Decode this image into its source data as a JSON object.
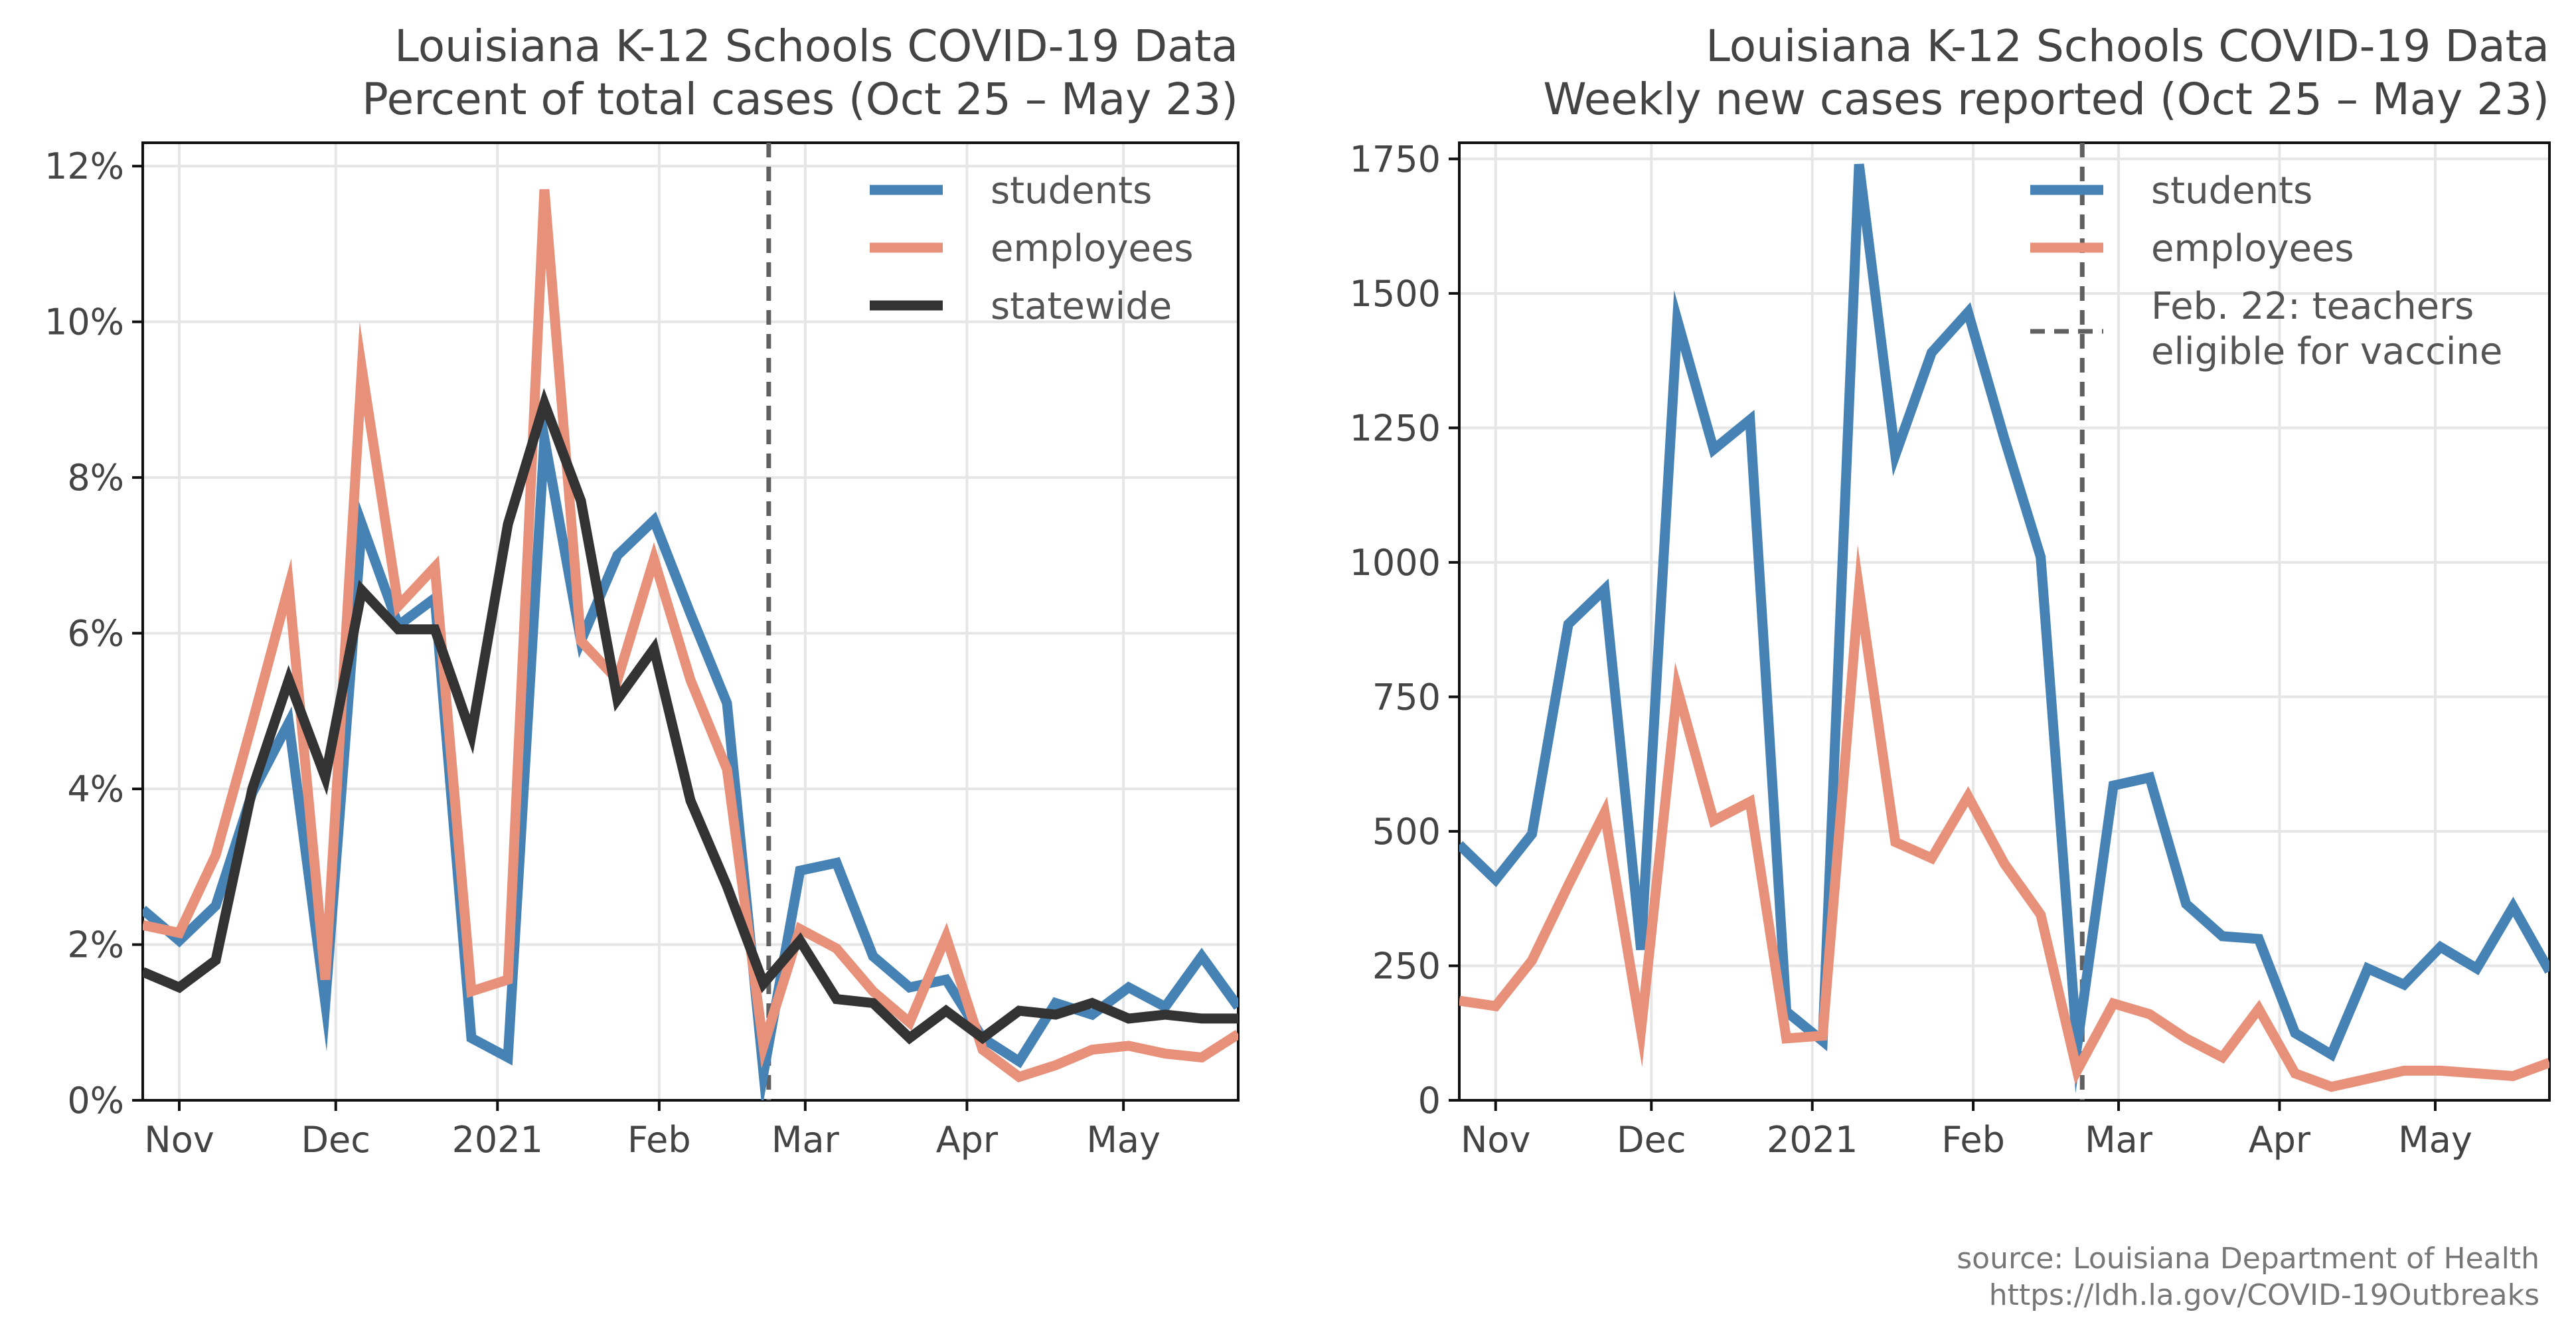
{
  "chart_data": [
    {
      "type": "line",
      "title": "Louisiana K-12 Schools COVID-19 Data",
      "subtitle": "Percent of total cases (Oct 25 – May 23)",
      "y_format": "percent",
      "ylim": [
        0,
        12.3
      ],
      "yticks": [
        0,
        2,
        4,
        6,
        8,
        10,
        12
      ],
      "ytick_labels": [
        "0%",
        "2%",
        "4%",
        "6%",
        "8%",
        "10%",
        "12%"
      ],
      "xlim": [
        "2020-10-25",
        "2021-05-23"
      ],
      "xticks": [
        "2020-11-01",
        "2020-12-01",
        "2021-01-01",
        "2021-02-01",
        "2021-03-01",
        "2021-04-01",
        "2021-05-01"
      ],
      "xtick_labels": [
        "Nov",
        "Dec",
        "2021",
        "Feb",
        "Mar",
        "Apr",
        "May"
      ],
      "grid": true,
      "legend_position": "top-right",
      "vline": {
        "x": "2021-02-22",
        "color": "#606060"
      },
      "series": [
        {
          "name": "students",
          "color": "#4682b4",
          "x": [
            "2020-10-25",
            "2020-11-01",
            "2020-11-08",
            "2020-11-15",
            "2020-11-22",
            "2020-11-29",
            "2020-12-06",
            "2020-12-13",
            "2020-12-20",
            "2020-12-27",
            "2021-01-03",
            "2021-01-10",
            "2021-01-17",
            "2021-01-24",
            "2021-01-31",
            "2021-02-07",
            "2021-02-14",
            "2021-02-21",
            "2021-02-28",
            "2021-03-07",
            "2021-03-14",
            "2021-03-21",
            "2021-03-28",
            "2021-04-04",
            "2021-04-11",
            "2021-04-18",
            "2021-04-25",
            "2021-05-02",
            "2021-05-09",
            "2021-05-16",
            "2021-05-23"
          ],
          "y": [
            2.45,
            2.05,
            2.5,
            3.95,
            4.85,
            1.25,
            7.4,
            6.1,
            6.45,
            0.8,
            0.55,
            8.5,
            5.9,
            7.0,
            7.45,
            6.25,
            5.1,
            0.35,
            2.95,
            3.05,
            1.85,
            1.45,
            1.55,
            0.8,
            0.5,
            1.25,
            1.1,
            1.45,
            1.2,
            1.85,
            1.2
          ]
        },
        {
          "name": "employees",
          "color": "#e8917a",
          "x": [
            "2020-10-25",
            "2020-11-01",
            "2020-11-08",
            "2020-11-15",
            "2020-11-22",
            "2020-11-29",
            "2020-12-06",
            "2020-12-13",
            "2020-12-20",
            "2020-12-27",
            "2021-01-03",
            "2021-01-10",
            "2021-01-17",
            "2021-01-24",
            "2021-01-31",
            "2021-02-07",
            "2021-02-14",
            "2021-02-21",
            "2021-02-28",
            "2021-03-07",
            "2021-03-14",
            "2021-03-21",
            "2021-03-28",
            "2021-04-04",
            "2021-04-11",
            "2021-04-18",
            "2021-04-25",
            "2021-05-02",
            "2021-05-09",
            "2021-05-16",
            "2021-05-23"
          ],
          "y": [
            2.25,
            2.15,
            3.15,
            4.85,
            6.6,
            1.55,
            9.4,
            6.35,
            6.85,
            1.4,
            1.55,
            11.7,
            5.9,
            5.4,
            6.95,
            5.4,
            4.25,
            0.7,
            2.2,
            1.95,
            1.4,
            1.0,
            2.1,
            0.65,
            0.3,
            0.45,
            0.65,
            0.7,
            0.6,
            0.55,
            0.85
          ]
        },
        {
          "name": "statewide",
          "color": "#333333",
          "x": [
            "2020-10-25",
            "2020-11-01",
            "2020-11-08",
            "2020-11-15",
            "2020-11-22",
            "2020-11-29",
            "2020-12-06",
            "2020-12-13",
            "2020-12-20",
            "2020-12-27",
            "2021-01-03",
            "2021-01-10",
            "2021-01-17",
            "2021-01-24",
            "2021-01-31",
            "2021-02-07",
            "2021-02-14",
            "2021-02-21",
            "2021-02-28",
            "2021-03-07",
            "2021-03-14",
            "2021-03-21",
            "2021-03-28",
            "2021-04-04",
            "2021-04-11",
            "2021-04-18",
            "2021-04-25",
            "2021-05-02",
            "2021-05-09",
            "2021-05-16",
            "2021-05-23"
          ],
          "y": [
            1.65,
            1.45,
            1.8,
            4.0,
            5.4,
            4.15,
            6.55,
            6.05,
            6.05,
            4.7,
            7.4,
            8.95,
            7.7,
            5.15,
            5.8,
            3.85,
            2.75,
            1.5,
            2.05,
            1.3,
            1.25,
            0.8,
            1.15,
            0.8,
            1.15,
            1.1,
            1.25,
            1.05,
            1.1,
            1.05,
            1.05
          ]
        }
      ]
    },
    {
      "type": "line",
      "title": "Louisiana K-12 Schools COVID-19 Data",
      "subtitle": "Weekly new cases reported (Oct 25 – May 23)",
      "y_format": "number",
      "ylim": [
        0,
        1780
      ],
      "yticks": [
        0,
        250,
        500,
        750,
        1000,
        1250,
        1500,
        1750
      ],
      "ytick_labels": [
        "0",
        "250",
        "500",
        "750",
        "1000",
        "1250",
        "1500",
        "1750"
      ],
      "xlim": [
        "2020-10-25",
        "2021-05-23"
      ],
      "xticks": [
        "2020-11-01",
        "2020-12-01",
        "2021-01-01",
        "2021-02-01",
        "2021-03-01",
        "2021-04-01",
        "2021-05-01"
      ],
      "xtick_labels": [
        "Nov",
        "Dec",
        "2021",
        "Feb",
        "Mar",
        "Apr",
        "May"
      ],
      "grid": true,
      "legend_position": "top-right",
      "vline": {
        "x": "2021-02-22",
        "color": "#606060",
        "label": "Feb. 22: teachers eligible for vaccine",
        "label_lines": [
          "Feb. 22: teachers",
          "eligible for vaccine"
        ]
      },
      "series": [
        {
          "name": "students",
          "color": "#4682b4",
          "x": [
            "2020-10-25",
            "2020-11-01",
            "2020-11-08",
            "2020-11-15",
            "2020-11-22",
            "2020-11-29",
            "2020-12-06",
            "2020-12-13",
            "2020-12-20",
            "2020-12-27",
            "2021-01-03",
            "2021-01-10",
            "2021-01-17",
            "2021-01-24",
            "2021-01-31",
            "2021-02-07",
            "2021-02-14",
            "2021-02-21",
            "2021-02-28",
            "2021-03-07",
            "2021-03-14",
            "2021-03-21",
            "2021-03-28",
            "2021-04-04",
            "2021-04-11",
            "2021-04-18",
            "2021-04-25",
            "2021-05-02",
            "2021-05-09",
            "2021-05-16",
            "2021-05-23"
          ],
          "y": [
            475,
            410,
            495,
            885,
            950,
            280,
            1450,
            1210,
            1265,
            165,
            110,
            1740,
            1200,
            1390,
            1465,
            1230,
            1010,
            100,
            585,
            600,
            365,
            305,
            300,
            125,
            85,
            245,
            215,
            285,
            245,
            360,
            240
          ]
        },
        {
          "name": "employees",
          "color": "#e8917a",
          "x": [
            "2020-10-25",
            "2020-11-01",
            "2020-11-08",
            "2020-11-15",
            "2020-11-22",
            "2020-11-29",
            "2020-12-06",
            "2020-12-13",
            "2020-12-20",
            "2020-12-27",
            "2021-01-03",
            "2021-01-10",
            "2021-01-17",
            "2021-01-24",
            "2021-01-31",
            "2021-02-07",
            "2021-02-14",
            "2021-02-21",
            "2021-02-28",
            "2021-03-07",
            "2021-03-14",
            "2021-03-21",
            "2021-03-28",
            "2021-04-04",
            "2021-04-11",
            "2021-04-18",
            "2021-04-25",
            "2021-05-02",
            "2021-05-09",
            "2021-05-16",
            "2021-05-23"
          ],
          "y": [
            185,
            175,
            260,
            400,
            535,
            130,
            765,
            520,
            555,
            115,
            120,
            950,
            480,
            450,
            565,
            440,
            345,
            55,
            180,
            160,
            115,
            80,
            170,
            50,
            25,
            40,
            55,
            55,
            50,
            45,
            70
          ]
        }
      ]
    }
  ],
  "source_note": {
    "line1": "source: Louisiana Department of Health",
    "line2": "https://ldh.la.gov/COVID-19Outbreaks"
  }
}
